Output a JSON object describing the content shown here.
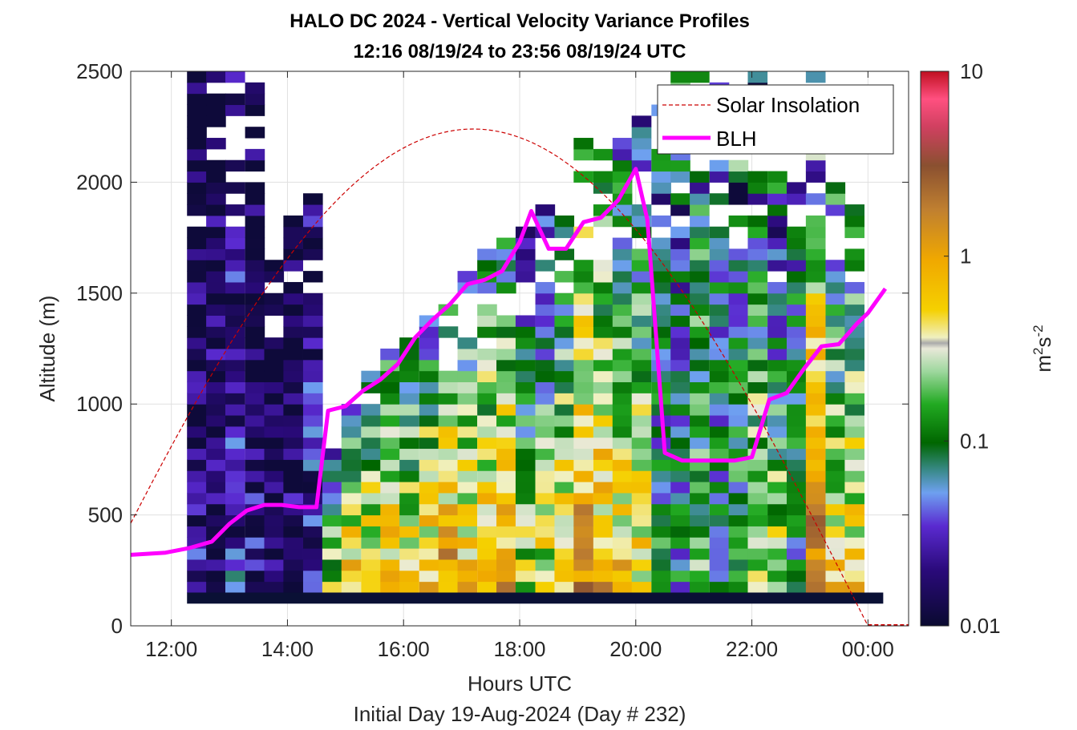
{
  "chart_data": {
    "type": "heatmap",
    "title": "HALO DC 2024 - Vertical Velocity Variance Profiles",
    "subtitle": "12:16 08/19/24 to 23:56 08/19/24  UTC",
    "xlabel": "Hours UTC",
    "ylabel": "Altitude (m)",
    "footer": "Initial Day 19-Aug-2024 (Day # 232)",
    "xlim": [
      11.3,
      24.7
    ],
    "ylim": [
      0,
      2500
    ],
    "x_ticks": [
      12,
      14,
      16,
      18,
      20,
      22,
      24
    ],
    "x_tick_labels": [
      "12:00",
      "14:00",
      "16:00",
      "18:00",
      "20:00",
      "22:00",
      "00:00"
    ],
    "y_ticks": [
      0,
      500,
      1000,
      1500,
      2000,
      2500
    ],
    "y_tick_labels": [
      "0",
      "500",
      "1000",
      "1500",
      "2000",
      "2500"
    ],
    "grid": true,
    "colorbar": {
      "label_base": "m",
      "label_sup1": "2",
      "label_mid": "s",
      "label_sup2": "-2",
      "scale": "log",
      "range": [
        0.01,
        10
      ],
      "tick_labels": [
        "0.01",
        "0.1",
        "1",
        "10"
      ],
      "tick_values": [
        0.01,
        0.1,
        1,
        10
      ]
    },
    "legend": {
      "placement": "top-right",
      "entries": [
        {
          "label": "Solar Insolation",
          "style": "dashed",
          "color": "#cc0000"
        },
        {
          "label": "BLH",
          "style": "solid",
          "color": "#ff00ff"
        }
      ]
    },
    "blh": {
      "name": "BLH",
      "x": [
        11.3,
        11.9,
        12.3,
        12.7,
        13.0,
        13.3,
        13.6,
        13.9,
        14.2,
        14.5,
        14.7,
        15.0,
        15.3,
        15.6,
        15.9,
        16.2,
        16.5,
        16.8,
        17.1,
        17.4,
        17.7,
        18.0,
        18.2,
        18.5,
        18.8,
        19.1,
        19.4,
        19.7,
        20.0,
        20.2,
        20.5,
        20.8,
        21.1,
        21.4,
        21.7,
        22.0,
        22.3,
        22.6,
        22.9,
        23.2,
        23.5,
        23.8,
        24.0,
        24.3
      ],
      "y": [
        320,
        330,
        350,
        380,
        460,
        520,
        545,
        545,
        535,
        535,
        970,
        990,
        1060,
        1110,
        1180,
        1300,
        1380,
        1450,
        1540,
        1560,
        1600,
        1730,
        1870,
        1700,
        1700,
        1820,
        1840,
        1920,
        2060,
        1830,
        780,
        745,
        745,
        745,
        745,
        760,
        1020,
        1050,
        1160,
        1260,
        1270,
        1360,
        1410,
        1520
      ]
    },
    "solar_insolation": {
      "name": "Solar Insolation",
      "sunrise_utc": 10.4,
      "sunset_utc": 24.0,
      "peak_altitude_m": 2240,
      "peak_time_utc": 17.2
    },
    "heatmap": {
      "x_start_utc": 12.27,
      "x_end_utc": 23.93,
      "bin_hours": 0.333,
      "bin_height_m": 50,
      "ground_layer_m": [
        100,
        150
      ],
      "ground_layer_color": "#0a1035",
      "columns": [
        {
          "t": 12.27,
          "top": 2500,
          "low": 0.02
        },
        {
          "t": 12.6,
          "top": 2500,
          "low": 0.02
        },
        {
          "t": 12.93,
          "top": 2500,
          "low": 0.03
        },
        {
          "t": 13.27,
          "top": 2450,
          "low": 0.02
        },
        {
          "t": 13.6,
          "top": 1700,
          "low": 0.015
        },
        {
          "t": 13.93,
          "top": 1850,
          "low": 0.02
        },
        {
          "t": 14.27,
          "top": 1950,
          "low": 0.03
        },
        {
          "t": 14.6,
          "top": 1000,
          "low": 0.3
        },
        {
          "t": 14.93,
          "top": 1050,
          "low": 0.8
        },
        {
          "t": 15.27,
          "top": 1150,
          "low": 0.7
        },
        {
          "t": 15.6,
          "top": 1250,
          "low": 0.9
        },
        {
          "t": 15.93,
          "top": 1350,
          "low": 0.6
        },
        {
          "t": 16.27,
          "top": 1400,
          "low": 0.8
        },
        {
          "t": 16.6,
          "top": 1450,
          "low": 1.2
        },
        {
          "t": 16.93,
          "top": 1600,
          "low": 0.7
        },
        {
          "t": 17.27,
          "top": 1700,
          "low": 0.8
        },
        {
          "t": 17.6,
          "top": 1750,
          "low": 0.9
        },
        {
          "t": 17.93,
          "top": 1800,
          "low": 0.3
        },
        {
          "t": 18.27,
          "top": 1900,
          "low": 0.4
        },
        {
          "t": 18.6,
          "top": 2000,
          "low": 0.6
        },
        {
          "t": 18.93,
          "top": 2200,
          "low": 1.5
        },
        {
          "t": 19.27,
          "top": 2150,
          "low": 0.9
        },
        {
          "t": 19.6,
          "top": 2200,
          "low": 0.7
        },
        {
          "t": 19.93,
          "top": 2300,
          "low": 0.5
        },
        {
          "t": 20.27,
          "top": 2400,
          "low": 0.1
        },
        {
          "t": 20.6,
          "top": 2500,
          "low": 0.08
        },
        {
          "t": 20.93,
          "top": 2500,
          "low": 0.15
        },
        {
          "t": 21.27,
          "top": 2450,
          "low": 0.1
        },
        {
          "t": 21.6,
          "top": 2300,
          "low": 0.12
        },
        {
          "t": 21.93,
          "top": 2500,
          "low": 0.4
        },
        {
          "t": 22.27,
          "top": 2050,
          "low": 0.3
        },
        {
          "t": 22.6,
          "top": 2400,
          "low": 0.1
        },
        {
          "t": 22.93,
          "top": 2500,
          "low": 1.5
        },
        {
          "t": 23.27,
          "top": 2050,
          "low": 0.5
        },
        {
          "t": 23.6,
          "top": 2050,
          "low": 0.6
        }
      ]
    }
  }
}
